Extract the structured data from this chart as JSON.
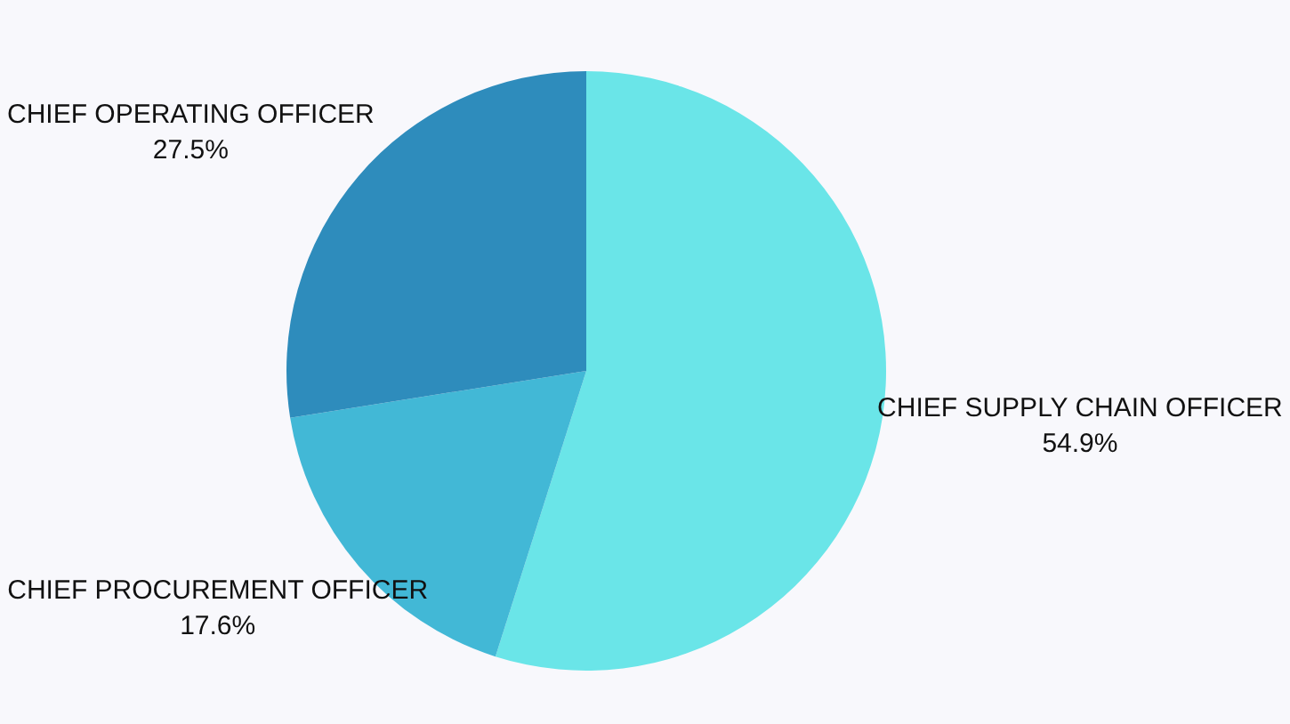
{
  "chart_data": {
    "type": "pie",
    "categories": [
      "CHIEF SUPPLY CHAIN OFFICER",
      "CHIEF PROCUREMENT OFFICER",
      "CHIEF OPERATING OFFICER"
    ],
    "values": [
      54.9,
      17.6,
      27.5
    ],
    "colors": [
      "#6ae5e8",
      "#42b8d6",
      "#2e8cbc"
    ],
    "value_labels": [
      "54.9%",
      "17.6%",
      "27.5%"
    ]
  }
}
